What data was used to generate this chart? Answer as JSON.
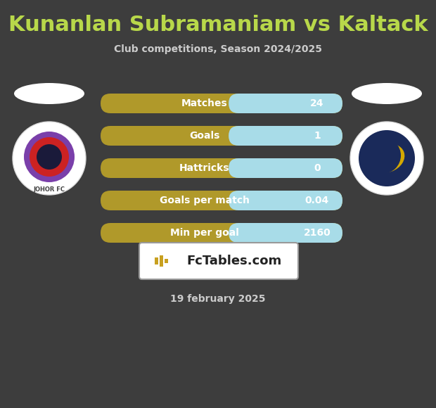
{
  "title": "Kunanlan Subramaniam vs Kaltack",
  "subtitle": "Club competitions, Season 2024/2025",
  "date_label": "19 february 2025",
  "fctables_label": "FcTables.com",
  "background_color": "#3d3d3d",
  "rows": [
    {
      "label": "Matches",
      "value": "24"
    },
    {
      "label": "Goals",
      "value": "1"
    },
    {
      "label": "Hattricks",
      "value": "0"
    },
    {
      "label": "Goals per match",
      "value": "0.04"
    },
    {
      "label": "Min per goal",
      "value": "2160"
    }
  ],
  "bar_left_color": "#b0992a",
  "bar_right_color": "#a8dce8",
  "title_color": "#b8d84a",
  "subtitle_color": "#cccccc",
  "date_color": "#cccccc",
  "label_color": "#ffffff",
  "value_color": "#ffffff",
  "title_fontsize": 22,
  "subtitle_fontsize": 10,
  "bar_label_fontsize": 10,
  "bar_value_fontsize": 10,
  "date_fontsize": 10
}
